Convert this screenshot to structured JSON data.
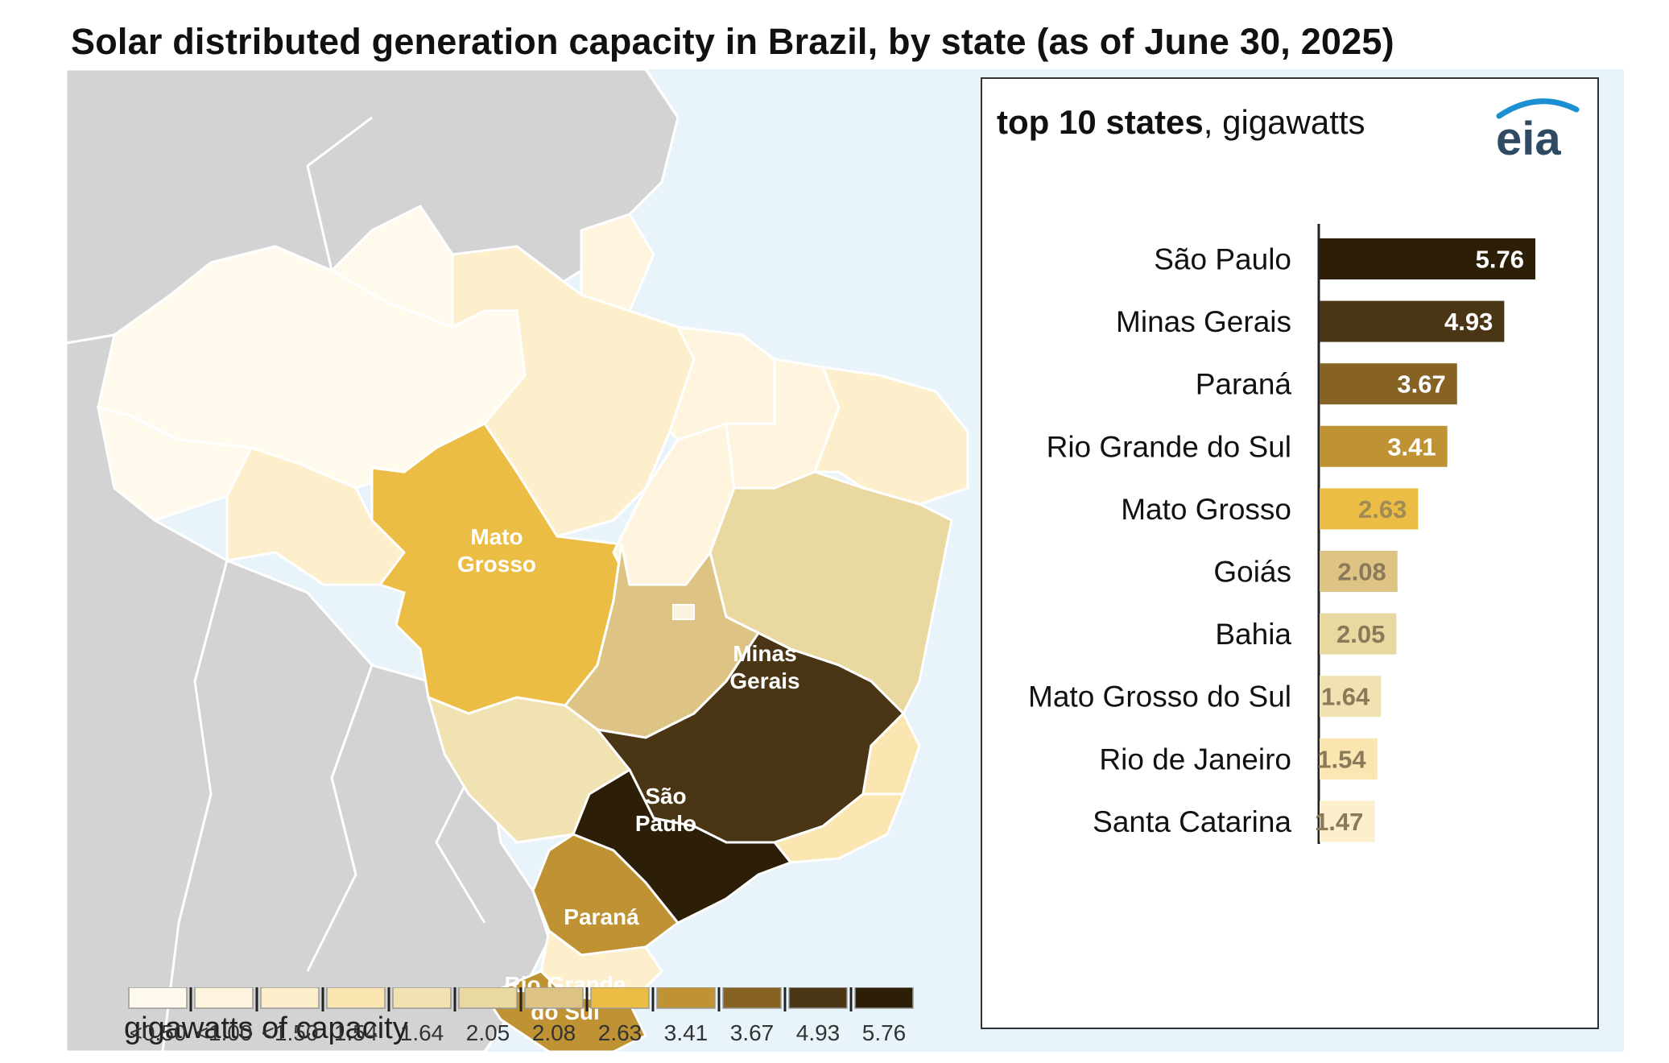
{
  "title": "Solar distributed generation capacity in Brazil, by state (as of June 30, 2025)",
  "chart_heading": {
    "bold": "top 10 states",
    "rest": ", gigawatts"
  },
  "logo_text": "eia",
  "map": {
    "legend_title": "gigawatts of capacity",
    "legend_bins": [
      {
        "label": "<0.50",
        "color": "#fffaec"
      },
      {
        "label": "<1.00",
        "color": "#fff5de"
      },
      {
        "label": "<1.50",
        "color": "#fdefcc"
      },
      {
        "label": "1.54",
        "color": "#fbe6b2"
      },
      {
        "label": "1.64",
        "color": "#f1e2b1"
      },
      {
        "label": "2.05",
        "color": "#e9d9a0"
      },
      {
        "label": "2.08",
        "color": "#dec484"
      },
      {
        "label": "2.63",
        "color": "#ebbd45"
      },
      {
        "label": "3.41",
        "color": "#bf9333"
      },
      {
        "label": "3.67",
        "color": "#866322"
      },
      {
        "label": "4.93",
        "color": "#4a3615"
      },
      {
        "label": "5.76",
        "color": "#2d1e08"
      }
    ],
    "state_labels": [
      {
        "lines": [
          "Mato",
          "Grosso"
        ]
      },
      {
        "lines": [
          "Minas",
          "Gerais"
        ]
      },
      {
        "lines": [
          "São",
          "Paulo"
        ]
      },
      {
        "lines": [
          "Paraná"
        ]
      },
      {
        "lines": [
          "Rio Grande",
          "do Sul"
        ]
      }
    ]
  },
  "chart_data": {
    "type": "bar",
    "orientation": "horizontal",
    "title": "top 10 states, gigawatts",
    "categories": [
      "São Paulo",
      "Minas Gerais",
      "Paraná",
      "Rio Grande do Sul",
      "Mato Grosso",
      "Goiás",
      "Bahia",
      "Mato Grosso do Sul",
      "Rio de Janeiro",
      "Santa Catarina"
    ],
    "values": [
      5.76,
      4.93,
      3.67,
      3.41,
      2.63,
      2.08,
      2.05,
      1.64,
      1.54,
      1.47
    ],
    "value_labels": [
      "5.76",
      "4.93",
      "3.67",
      "3.41",
      "2.63",
      "2.08",
      "2.05",
      "1.64",
      "1.54",
      "1.47"
    ],
    "bar_colors": [
      "#2d1e08",
      "#4a3615",
      "#866322",
      "#bf9333",
      "#ebbd45",
      "#dec484",
      "#e9d9a0",
      "#f1e2b1",
      "#fbe6b2",
      "#fdefcc"
    ],
    "label_colors": [
      "#ffffff",
      "#ffffff",
      "#ffffff",
      "#ffffff",
      "#a08a55",
      "#8a7a5a",
      "#8a7a5a",
      "#8a7a5a",
      "#8a7a5a",
      "#8a7a5a"
    ],
    "xlim": [
      0,
      6
    ],
    "grid": false,
    "legend": "none"
  }
}
